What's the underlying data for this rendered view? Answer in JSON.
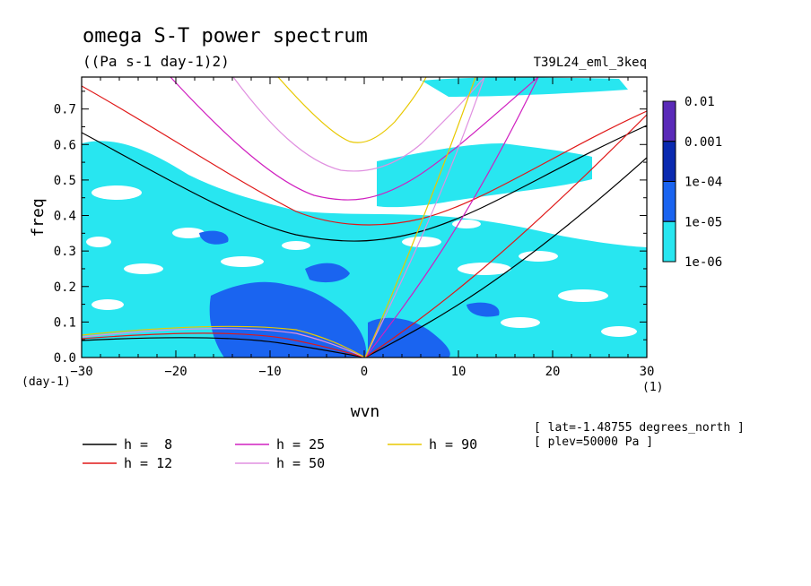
{
  "header": {
    "title": "omega S-T power spectrum",
    "units": "((Pa s-1 day-1)2)",
    "run_id": "T39L24_eml_3keq"
  },
  "colorbar": {
    "labels": [
      "0.01",
      "0.001",
      "1e-04",
      "1e-05",
      "1e-06"
    ],
    "colors": [
      "#5a2ab8",
      "#0a2ab0",
      "#1a64f0",
      "#28e6f0"
    ]
  },
  "info": {
    "lat": "[ lat=-1.48755 degrees_north ]",
    "plev": "[ plev=50000 Pa ]"
  },
  "legend": [
    {
      "label": "h =  8",
      "color": "#000000"
    },
    {
      "label": "h = 12",
      "color": "#e01818"
    },
    {
      "label": "h = 25",
      "color": "#d020c0"
    },
    {
      "label": "h = 50",
      "color": "#e090e0"
    },
    {
      "label": "h = 90",
      "color": "#e8c800"
    }
  ],
  "chart_data": {
    "type": "heatmap",
    "title": "omega S-T power spectrum",
    "subtitle": "((Pa s-1 day-1)2)",
    "xlabel": "wvn",
    "ylabel": "freq",
    "x_unit_label": "(1)",
    "y_unit_label": "(day-1)",
    "xlim": [
      -30,
      30
    ],
    "ylim": [
      0,
      0.79
    ],
    "xticks": [
      "-30",
      "-20",
      "-10",
      "0",
      "10",
      "20",
      "30"
    ],
    "yticks": [
      "0.0",
      "0.1",
      "0.2",
      "0.3",
      "0.4",
      "0.5",
      "0.6",
      "0.7"
    ],
    "contour_levels": [
      1e-06,
      1e-05,
      0.0001,
      0.001,
      0.01
    ],
    "shaded_regions": [
      {
        "level": "1e-06 to 1e-05",
        "description_x": [
          -30,
          30
        ],
        "description_y": [
          0,
          0.6
        ]
      },
      {
        "level": "1e-05 to 1e-04",
        "x": [
          -16,
          12
        ],
        "y": [
          0,
          0.25
        ]
      }
    ],
    "dispersion_curves": [
      {
        "name": "h =  8",
        "equivalent_depth": 8
      },
      {
        "name": "h = 12",
        "equivalent_depth": 12
      },
      {
        "name": "h = 25",
        "equivalent_depth": 25
      },
      {
        "name": "h = 50",
        "equivalent_depth": 50
      },
      {
        "name": "h = 90",
        "equivalent_depth": 90
      }
    ]
  }
}
